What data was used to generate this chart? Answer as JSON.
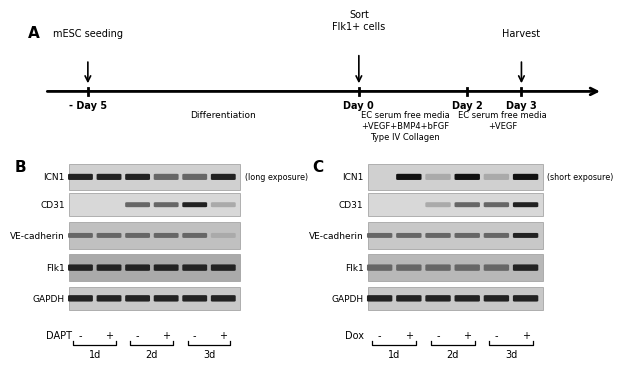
{
  "panel_A": {
    "timeline_points": [
      -5,
      0,
      2,
      3
    ],
    "day_labels": [
      "- Day 5",
      "Day 0",
      "Day 2",
      "Day 3"
    ],
    "above": [
      {
        "x": -5,
        "text": "mESC seeding",
        "two_line": false
      },
      {
        "x": 0,
        "text": "Sort\nFlk1+ cells",
        "two_line": true
      },
      {
        "x": 3,
        "text": "Harvest",
        "two_line": false
      }
    ],
    "below": [
      {
        "x": -2.5,
        "text": "Differentiation"
      },
      {
        "x": 1.0,
        "text": "EC serum free media\n+VEGF+BMP4+bFGF\nType IV Collagen"
      },
      {
        "x": 2.6,
        "text": "EC serum free media\n+VEGF"
      }
    ]
  },
  "panel_B": {
    "title": "B",
    "exposure": "(long exposure)",
    "markers": [
      "ICN1",
      "CD31",
      "VE-cadherin",
      "Flk1",
      "GAPDH"
    ],
    "x_label": "DAPT",
    "groups": [
      "1d",
      "2d",
      "3d"
    ],
    "signs": [
      "-",
      "+",
      "-",
      "+",
      "-",
      "+"
    ],
    "blot_patterns": [
      [
        3,
        3,
        3,
        2,
        2,
        3
      ],
      [
        0,
        0,
        2,
        2,
        3,
        1
      ],
      [
        2,
        2,
        2,
        2,
        2,
        1
      ],
      [
        3,
        3,
        3,
        3,
        3,
        3
      ],
      [
        3,
        3,
        3,
        3,
        3,
        3
      ]
    ],
    "gel_bg_colors": [
      "#d0d0d0",
      "#d8d8d8",
      "#c0c0c0",
      "#aaaaaa",
      "#c8c8c8"
    ],
    "band_colors": [
      "#111111",
      "#333333",
      "#555555",
      "#222222",
      "#222222"
    ]
  },
  "panel_C": {
    "title": "C",
    "exposure": "(short exposure)",
    "markers": [
      "ICN1",
      "CD31",
      "VE-cadherin",
      "Flk1",
      "GAPDH"
    ],
    "x_label": "Dox",
    "groups": [
      "1d",
      "2d",
      "3d"
    ],
    "signs": [
      "-",
      "+",
      "-",
      "+",
      "-",
      "+"
    ],
    "blot_patterns": [
      [
        0,
        4,
        1,
        4,
        1,
        4
      ],
      [
        0,
        0,
        1,
        2,
        2,
        3
      ],
      [
        2,
        2,
        2,
        2,
        2,
        3
      ],
      [
        2,
        2,
        2,
        2,
        2,
        3
      ],
      [
        3,
        3,
        3,
        3,
        3,
        3
      ]
    ],
    "gel_bg_colors": [
      "#d0d0d0",
      "#d8d8d8",
      "#c8c8c8",
      "#b8b8b8",
      "#c8c8c8"
    ],
    "band_colors": [
      "#111111",
      "#333333",
      "#333333",
      "#333333",
      "#222222"
    ]
  },
  "bg_color": "#ffffff",
  "text_color": "#000000"
}
